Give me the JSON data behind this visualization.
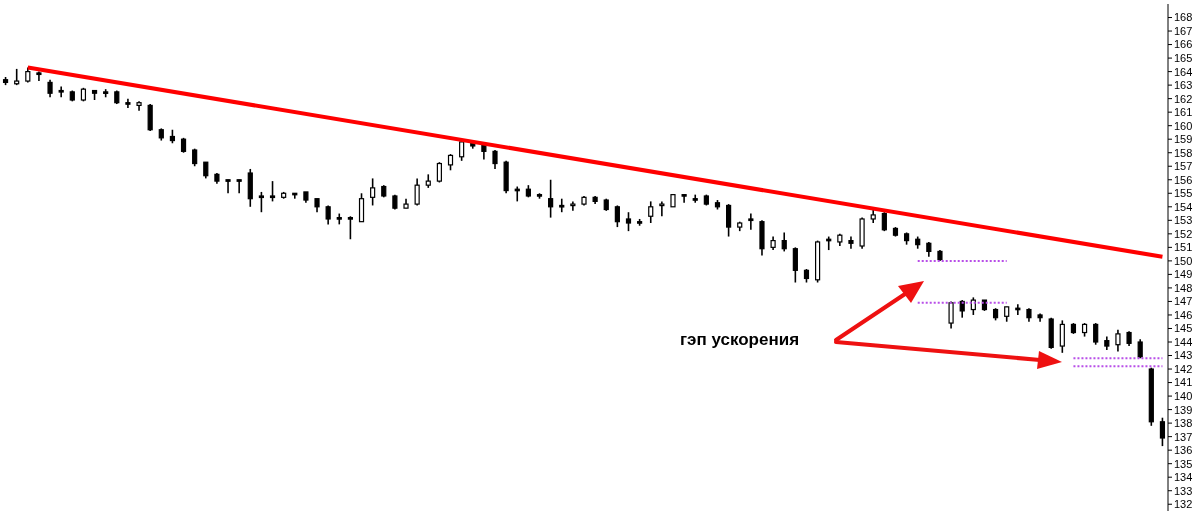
{
  "chart_data": {
    "type": "candlestick",
    "color": "#000000",
    "categories": [
      null,
      null,
      null,
      null,
      null,
      null,
      null,
      null,
      null,
      null,
      null,
      null,
      null,
      null,
      null,
      null,
      null,
      null,
      null,
      null,
      null,
      null,
      null,
      null,
      null,
      null,
      null,
      null,
      null,
      null,
      null,
      null,
      null,
      null,
      null,
      null,
      null,
      null,
      null,
      null,
      null,
      null,
      null,
      null,
      null,
      null,
      null,
      null,
      null,
      null,
      null,
      null,
      null,
      null,
      null,
      null,
      null,
      null,
      null,
      null,
      null,
      null,
      null,
      null,
      null,
      null,
      null,
      null,
      null,
      null,
      null,
      null,
      null,
      null,
      null,
      null,
      null,
      null,
      null,
      null,
      null,
      null,
      null,
      null,
      null,
      null,
      null,
      null,
      null,
      null,
      null,
      null,
      null,
      null,
      null,
      null,
      null,
      null,
      null,
      null,
      null,
      null,
      null,
      null,
      null
    ],
    "ohlc": [
      [
        163.4,
        163.6,
        163.0,
        163.2
      ],
      [
        163.1,
        164.2,
        163.0,
        163.3
      ],
      [
        163.3,
        164.3,
        163.2,
        164.0
      ],
      [
        163.9,
        164.0,
        163.3,
        163.8
      ],
      [
        163.2,
        163.4,
        162.1,
        162.4
      ],
      [
        162.6,
        162.9,
        162.1,
        162.5
      ],
      [
        162.5,
        162.6,
        161.8,
        161.9
      ],
      [
        161.9,
        162.8,
        161.8,
        162.7
      ],
      [
        162.6,
        162.6,
        161.9,
        162.4
      ],
      [
        162.5,
        162.7,
        162.1,
        162.4
      ],
      [
        162.5,
        162.6,
        161.6,
        161.7
      ],
      [
        161.7,
        162.0,
        161.3,
        161.6
      ],
      [
        161.5,
        161.8,
        161.1,
        161.7
      ],
      [
        161.5,
        161.6,
        159.6,
        159.7
      ],
      [
        159.7,
        159.8,
        158.9,
        159.1
      ],
      [
        159.2,
        159.7,
        158.7,
        158.9
      ],
      [
        159.0,
        159.1,
        158.0,
        158.1
      ],
      [
        158.2,
        158.3,
        157.0,
        157.2
      ],
      [
        157.3,
        157.3,
        156.1,
        156.3
      ],
      [
        156.4,
        156.5,
        155.7,
        155.9
      ],
      [
        156.0,
        156.0,
        155.0,
        155.9
      ],
      [
        156.0,
        156.0,
        155.0,
        155.9
      ],
      [
        156.5,
        156.8,
        154.0,
        154.6
      ],
      [
        154.8,
        155.1,
        153.6,
        154.7
      ],
      [
        154.8,
        155.9,
        154.4,
        154.7
      ],
      [
        154.7,
        155.1,
        154.6,
        155.0
      ],
      [
        155.0,
        155.0,
        154.6,
        154.9
      ],
      [
        155.1,
        155.1,
        154.3,
        154.5
      ],
      [
        154.6,
        154.6,
        153.6,
        154.0
      ],
      [
        154.0,
        154.1,
        152.7,
        153.1
      ],
      [
        153.2,
        153.5,
        152.7,
        153.1
      ],
      [
        153.2,
        153.3,
        151.6,
        153.1
      ],
      [
        152.9,
        155.0,
        152.9,
        154.6
      ],
      [
        154.7,
        156.1,
        154.1,
        155.4
      ],
      [
        155.5,
        155.6,
        154.7,
        154.8
      ],
      [
        154.8,
        154.9,
        153.8,
        153.9
      ],
      [
        153.9,
        154.6,
        153.9,
        154.2
      ],
      [
        154.2,
        156.1,
        154.1,
        155.6
      ],
      [
        155.6,
        156.4,
        155.4,
        155.9
      ],
      [
        155.9,
        157.3,
        155.8,
        157.2
      ],
      [
        157.1,
        157.9,
        156.7,
        157.8
      ],
      [
        157.7,
        159.0,
        157.4,
        158.8
      ],
      [
        158.7,
        158.8,
        158.3,
        158.5
      ],
      [
        158.6,
        158.7,
        157.5,
        158.1
      ],
      [
        158.1,
        158.2,
        156.8,
        157.2
      ],
      [
        157.3,
        157.4,
        155.0,
        155.2
      ],
      [
        155.3,
        155.5,
        154.4,
        155.2
      ],
      [
        155.3,
        155.6,
        154.7,
        154.8
      ],
      [
        154.9,
        155.0,
        154.6,
        154.8
      ],
      [
        154.6,
        156.0,
        153.2,
        154.0
      ],
      [
        154.1,
        154.6,
        153.6,
        154.0
      ],
      [
        154.1,
        154.4,
        153.7,
        154.2
      ],
      [
        154.2,
        154.8,
        154.1,
        154.7
      ],
      [
        154.7,
        154.8,
        154.2,
        154.4
      ],
      [
        154.5,
        154.6,
        153.7,
        153.8
      ],
      [
        154.0,
        154.1,
        152.5,
        152.9
      ],
      [
        153.1,
        153.6,
        152.2,
        152.8
      ],
      [
        152.9,
        153.1,
        152.6,
        152.8
      ],
      [
        153.3,
        154.4,
        152.8,
        154.0
      ],
      [
        154.1,
        154.4,
        153.3,
        154.2
      ],
      [
        154.0,
        154.9,
        154.0,
        154.9
      ],
      [
        154.9,
        154.9,
        154.3,
        154.8
      ],
      [
        154.6,
        154.9,
        154.3,
        154.5
      ],
      [
        154.8,
        154.9,
        154.1,
        154.2
      ],
      [
        154.3,
        154.5,
        153.8,
        154.0
      ],
      [
        154.1,
        154.2,
        151.8,
        152.5
      ],
      [
        152.5,
        152.9,
        152.2,
        152.8
      ],
      [
        153.1,
        153.5,
        152.3,
        153.0
      ],
      [
        152.9,
        153.0,
        150.4,
        150.9
      ],
      [
        151.0,
        151.8,
        150.8,
        151.5
      ],
      [
        151.5,
        152.1,
        150.7,
        150.9
      ],
      [
        150.9,
        151.0,
        148.4,
        149.3
      ],
      [
        149.3,
        149.4,
        148.4,
        148.7
      ],
      [
        148.6,
        151.5,
        148.4,
        151.4
      ],
      [
        151.6,
        151.8,
        150.8,
        151.5
      ],
      [
        151.4,
        152.0,
        151.1,
        151.9
      ],
      [
        151.5,
        151.8,
        150.9,
        151.3
      ],
      [
        151.1,
        153.2,
        150.9,
        153.1
      ],
      [
        153.1,
        153.8,
        152.8,
        153.4
      ],
      [
        153.5,
        153.6,
        152.2,
        152.3
      ],
      [
        152.4,
        152.5,
        151.8,
        151.9
      ],
      [
        152.0,
        152.1,
        151.2,
        151.5
      ],
      [
        151.6,
        151.8,
        150.9,
        151.2
      ],
      [
        151.3,
        151.4,
        150.3,
        150.7
      ],
      [
        150.7,
        150.8,
        150.0,
        150.1
      ],
      [
        145.4,
        147.0,
        145.0,
        146.9
      ],
      [
        147.0,
        147.1,
        145.8,
        146.3
      ],
      [
        146.4,
        147.3,
        146.0,
        147.1
      ],
      [
        147.1,
        147.1,
        146.3,
        146.4
      ],
      [
        146.4,
        146.5,
        145.6,
        145.8
      ],
      [
        145.9,
        146.6,
        145.5,
        146.6
      ],
      [
        146.5,
        146.8,
        146.0,
        146.4
      ],
      [
        146.4,
        146.5,
        145.5,
        145.8
      ],
      [
        146.0,
        146.1,
        145.5,
        145.8
      ],
      [
        145.7,
        145.8,
        143.5,
        143.6
      ],
      [
        143.7,
        145.6,
        143.2,
        145.3
      ],
      [
        145.3,
        145.4,
        144.6,
        144.7
      ],
      [
        144.7,
        145.4,
        144.4,
        145.3
      ],
      [
        145.3,
        145.4,
        143.8,
        144.0
      ],
      [
        144.1,
        144.4,
        143.4,
        143.7
      ],
      [
        143.8,
        144.9,
        143.3,
        144.6
      ],
      [
        144.7,
        144.8,
        143.7,
        143.9
      ],
      [
        144.0,
        144.2,
        142.8,
        142.9
      ],
      [
        142.0,
        142.1,
        137.8,
        138.1
      ],
      [
        138.1,
        138.4,
        136.3,
        136.9
      ]
    ],
    "series": [
      {
        "type": "line",
        "color": "#ff0000",
        "line_style": "solid",
        "values": [
          null,
          null,
          164.3,
          null,
          null,
          null,
          null,
          null,
          null,
          null,
          null,
          null,
          null,
          null,
          null,
          null,
          null,
          null,
          null,
          null,
          null,
          null,
          null,
          null,
          null,
          null,
          null,
          null,
          null,
          null,
          null,
          null,
          null,
          null,
          null,
          null,
          null,
          null,
          null,
          null,
          null,
          null,
          null,
          null,
          null,
          null,
          null,
          null,
          null,
          null,
          null,
          null,
          null,
          null,
          null,
          null,
          null,
          null,
          null,
          null,
          null,
          null,
          null,
          null,
          null,
          null,
          null,
          null,
          null,
          null,
          null,
          null,
          null,
          null,
          null,
          null,
          null,
          null,
          null,
          null,
          null,
          null,
          null,
          null,
          null,
          null,
          null,
          null,
          null,
          null,
          null,
          null,
          null,
          null,
          null,
          null,
          null,
          null,
          null,
          null,
          null,
          null,
          null,
          null,
          150.3
        ]
      },
      {
        "type": "line",
        "color": "#b84ee8",
        "line_style": "dotted",
        "values": [
          null,
          null,
          null,
          null,
          null,
          null,
          null,
          null,
          null,
          null,
          null,
          null,
          null,
          null,
          null,
          null,
          null,
          null,
          null,
          null,
          null,
          null,
          null,
          null,
          null,
          null,
          null,
          null,
          null,
          null,
          null,
          null,
          null,
          null,
          null,
          null,
          null,
          null,
          null,
          null,
          null,
          null,
          null,
          null,
          null,
          null,
          null,
          null,
          null,
          null,
          null,
          null,
          null,
          null,
          null,
          null,
          null,
          null,
          null,
          null,
          null,
          null,
          null,
          null,
          null,
          null,
          null,
          null,
          null,
          null,
          null,
          null,
          null,
          null,
          null,
          null,
          null,
          null,
          null,
          null,
          null,
          null,
          150.0,
          150.0,
          150.0,
          150.0,
          150.0,
          150.0,
          150.0,
          150.0,
          150.0,
          null,
          null,
          null,
          null,
          null,
          null,
          null,
          null,
          null,
          null,
          null,
          null,
          null,
          null
        ]
      },
      {
        "type": "line",
        "color": "#b84ee8",
        "line_style": "dotted",
        "values": [
          null,
          null,
          null,
          null,
          null,
          null,
          null,
          null,
          null,
          null,
          null,
          null,
          null,
          null,
          null,
          null,
          null,
          null,
          null,
          null,
          null,
          null,
          null,
          null,
          null,
          null,
          null,
          null,
          null,
          null,
          null,
          null,
          null,
          null,
          null,
          null,
          null,
          null,
          null,
          null,
          null,
          null,
          null,
          null,
          null,
          null,
          null,
          null,
          null,
          null,
          null,
          null,
          null,
          null,
          null,
          null,
          null,
          null,
          null,
          null,
          null,
          null,
          null,
          null,
          null,
          null,
          null,
          null,
          null,
          null,
          null,
          null,
          null,
          null,
          null,
          null,
          null,
          null,
          null,
          null,
          null,
          null,
          146.9,
          146.9,
          146.9,
          146.9,
          146.9,
          146.9,
          146.9,
          146.9,
          146.9,
          null,
          null,
          null,
          null,
          null,
          null,
          null,
          null,
          null,
          null,
          null,
          null,
          null,
          null
        ]
      },
      {
        "type": "line",
        "color": "#b84ee8",
        "line_style": "dotted",
        "values": [
          null,
          null,
          null,
          null,
          null,
          null,
          null,
          null,
          null,
          null,
          null,
          null,
          null,
          null,
          null,
          null,
          null,
          null,
          null,
          null,
          null,
          null,
          null,
          null,
          null,
          null,
          null,
          null,
          null,
          null,
          null,
          null,
          null,
          null,
          null,
          null,
          null,
          null,
          null,
          null,
          null,
          null,
          null,
          null,
          null,
          null,
          null,
          null,
          null,
          null,
          null,
          null,
          null,
          null,
          null,
          null,
          null,
          null,
          null,
          null,
          null,
          null,
          null,
          null,
          null,
          null,
          null,
          null,
          null,
          null,
          null,
          null,
          null,
          null,
          null,
          null,
          null,
          null,
          null,
          null,
          null,
          null,
          null,
          null,
          null,
          null,
          null,
          null,
          null,
          null,
          null,
          null,
          null,
          null,
          null,
          null,
          142.8,
          142.8,
          142.8,
          142.8,
          142.8,
          142.8,
          142.8,
          142.8,
          142.8
        ]
      },
      {
        "type": "line",
        "color": "#b84ee8",
        "line_style": "dotted",
        "values": [
          null,
          null,
          null,
          null,
          null,
          null,
          null,
          null,
          null,
          null,
          null,
          null,
          null,
          null,
          null,
          null,
          null,
          null,
          null,
          null,
          null,
          null,
          null,
          null,
          null,
          null,
          null,
          null,
          null,
          null,
          null,
          null,
          null,
          null,
          null,
          null,
          null,
          null,
          null,
          null,
          null,
          null,
          null,
          null,
          null,
          null,
          null,
          null,
          null,
          null,
          null,
          null,
          null,
          null,
          null,
          null,
          null,
          null,
          null,
          null,
          null,
          null,
          null,
          null,
          null,
          null,
          null,
          null,
          null,
          null,
          null,
          null,
          null,
          null,
          null,
          null,
          null,
          null,
          null,
          null,
          null,
          null,
          null,
          null,
          null,
          null,
          null,
          null,
          null,
          null,
          null,
          null,
          null,
          null,
          null,
          null,
          142.2,
          142.2,
          142.2,
          142.2,
          142.2,
          142.2,
          142.2,
          142.2,
          142.2
        ]
      }
    ],
    "ylim": [
      131.5,
      169
    ],
    "yticks": [
      132,
      133,
      134,
      135,
      136,
      137,
      138,
      139,
      140,
      141,
      142,
      143,
      144,
      145,
      146,
      147,
      148,
      149,
      150,
      151,
      152,
      153,
      154,
      155,
      156,
      157,
      158,
      159,
      160,
      161,
      162,
      163,
      164,
      165,
      166,
      167,
      168
    ],
    "tick_labels": "y",
    "grid": false,
    "legend": false,
    "marker": "none",
    "annotations": [
      "гэп ускорения"
    ]
  }
}
